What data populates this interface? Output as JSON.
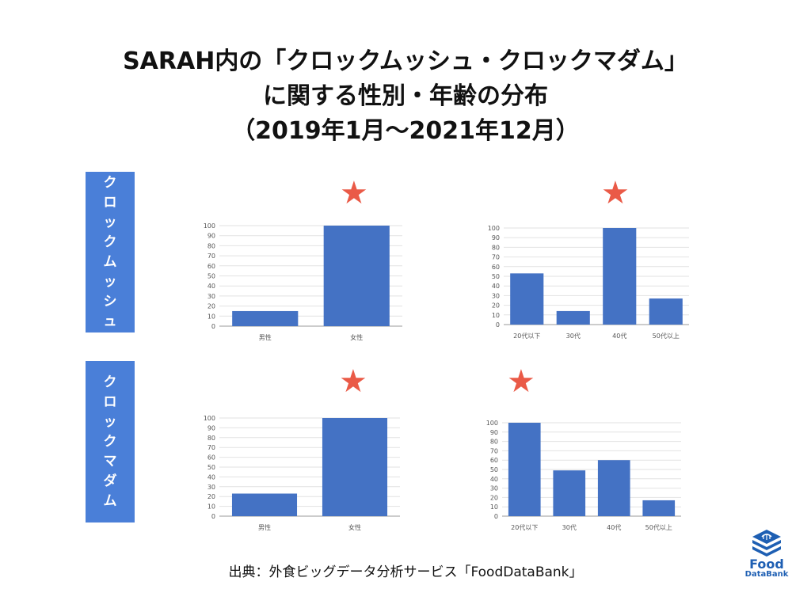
{
  "title": {
    "line1": "SARAH内の「クロックムッシュ・クロックマダム」",
    "line2": "に関する性別・年齢の分布",
    "line3": "（2019年1月〜2021年12月）"
  },
  "row_labels": {
    "monsieur": [
      "ク",
      "ロ",
      "ッ",
      "ク",
      "ム",
      "ッ",
      "シ",
      "ュ"
    ],
    "madame": [
      "ク",
      "ロ",
      "ッ",
      "ク",
      "マ",
      "ダ",
      "ム"
    ]
  },
  "stars": [
    "★",
    "★",
    "★",
    "★"
  ],
  "source": "出典：外食ビッグデータ分析サービス「FoodDataBank」",
  "logo": {
    "line1": "Food",
    "line2": "DataBank"
  },
  "colors": {
    "bar": "#4472c4",
    "label_box": "#4a7fd8",
    "star": "#ea5a47"
  },
  "chart_data": [
    {
      "type": "bar",
      "categories": [
        "男性",
        "女性"
      ],
      "values": [
        15,
        100
      ],
      "ylim": [
        0,
        100
      ],
      "yticks": [
        0,
        10,
        20,
        30,
        40,
        50,
        60,
        70,
        80,
        90,
        100
      ],
      "grid": true
    },
    {
      "type": "bar",
      "categories": [
        "20代以下",
        "30代",
        "40代",
        "50代以上"
      ],
      "values": [
        53,
        14,
        100,
        27
      ],
      "ylim": [
        0,
        100
      ],
      "yticks": [
        0,
        10,
        20,
        30,
        40,
        50,
        60,
        70,
        80,
        90,
        100
      ],
      "grid": true
    },
    {
      "type": "bar",
      "categories": [
        "男性",
        "女性"
      ],
      "values": [
        23,
        100
      ],
      "ylim": [
        0,
        100
      ],
      "yticks": [
        0,
        10,
        20,
        30,
        40,
        50,
        60,
        70,
        80,
        90,
        100
      ],
      "grid": true
    },
    {
      "type": "bar",
      "categories": [
        "20代以下",
        "30代",
        "40代",
        "50代以上"
      ],
      "values": [
        100,
        49,
        60,
        17
      ],
      "ylim": [
        0,
        100
      ],
      "yticks": [
        0,
        10,
        20,
        30,
        40,
        50,
        60,
        70,
        80,
        90,
        100
      ],
      "grid": true
    }
  ]
}
